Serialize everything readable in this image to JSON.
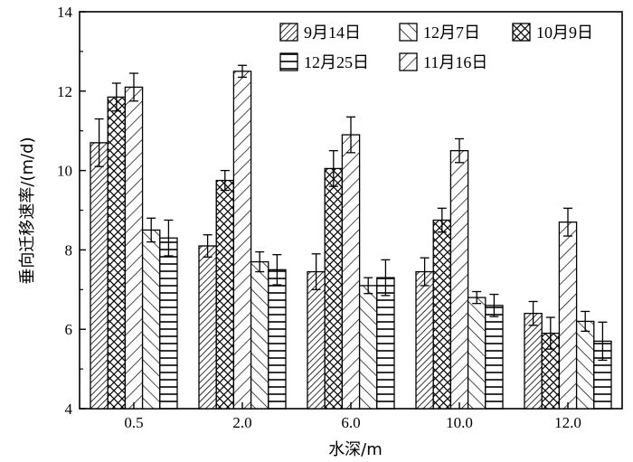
{
  "chart_data": {
    "type": "bar",
    "xlabel": "水深/m",
    "ylabel": "垂向迁移速率/(m/d)",
    "categories": [
      "0.5",
      "2.0",
      "6.0",
      "10.0",
      "12.0"
    ],
    "yticks": [
      "4",
      "6",
      "8",
      "10",
      "12",
      "14"
    ],
    "ylim": [
      4,
      14
    ],
    "grid": false,
    "legend_position": "top-right",
    "series": [
      {
        "name": "9月14日",
        "pattern": "diagonal-fine",
        "values": [
          10.7,
          8.1,
          7.45,
          7.45,
          6.4
        ],
        "errors": [
          0.6,
          0.28,
          0.45,
          0.35,
          0.3
        ]
      },
      {
        "name": "10月9日",
        "pattern": "crosshatch",
        "values": [
          11.85,
          9.75,
          10.05,
          8.75,
          5.9
        ],
        "errors": [
          0.35,
          0.25,
          0.45,
          0.3,
          0.4
        ]
      },
      {
        "name": "11月16日",
        "pattern": "diagonal-wide",
        "values": [
          12.1,
          12.5,
          10.9,
          10.5,
          8.7
        ],
        "errors": [
          0.35,
          0.15,
          0.45,
          0.3,
          0.35
        ]
      },
      {
        "name": "12月7日",
        "pattern": "backslash",
        "values": [
          8.5,
          7.7,
          7.1,
          6.8,
          6.2
        ],
        "errors": [
          0.3,
          0.25,
          0.2,
          0.15,
          0.25
        ]
      },
      {
        "name": "12月25日",
        "pattern": "horizontal",
        "values": [
          8.3,
          7.5,
          7.3,
          6.6,
          5.7
        ],
        "errors": [
          0.45,
          0.38,
          0.45,
          0.28,
          0.48
        ]
      }
    ],
    "legend_order": [
      "9月14日",
      "12月7日",
      "10月9日",
      "12月25日",
      "11月16日"
    ]
  }
}
